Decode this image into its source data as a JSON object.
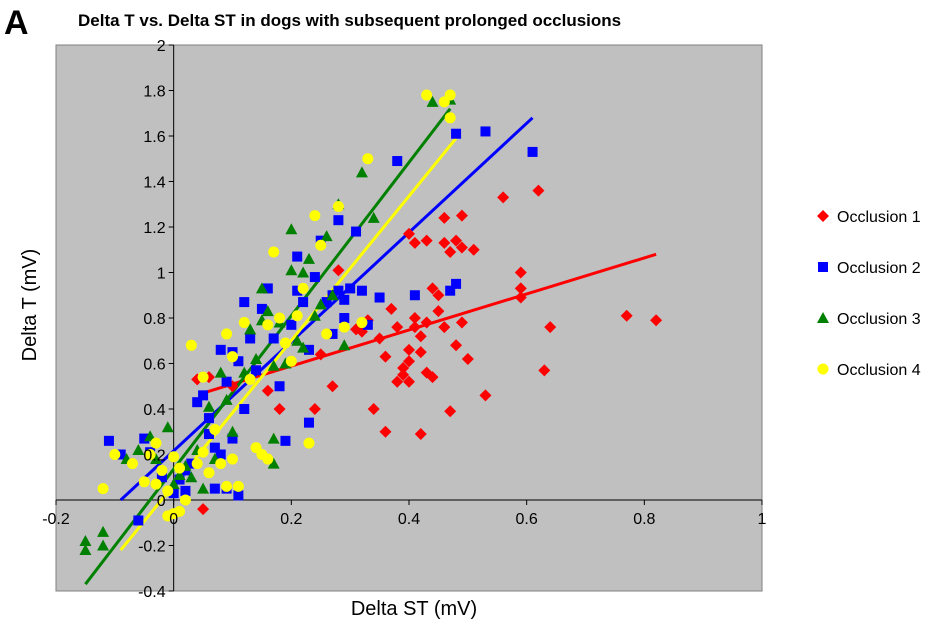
{
  "figure": {
    "panel_label": "A"
  },
  "chart_data": {
    "type": "scatter",
    "title": "Delta T vs. Delta ST in dogs with subsequent prolonged occlusions",
    "xlabel": "Delta ST (mV)",
    "ylabel": "Delta T (mV)",
    "xlim": [
      -0.2,
      1
    ],
    "ylim": [
      -0.4,
      2
    ],
    "x_ticks": [
      "-0.2",
      "0",
      "0.2",
      "0.4",
      "0.6",
      "0.8",
      "1"
    ],
    "y_ticks": [
      "-0.4",
      "-0.2",
      "0",
      "0.2",
      "0.4",
      "0.6",
      "0.8",
      "1",
      "1.2",
      "1.4",
      "1.6",
      "1.8",
      "2"
    ],
    "grid": false,
    "plot_background": "#c0c0c0",
    "legend_position": "right",
    "series": [
      {
        "name": "Occlusion 1",
        "color": "#ff0000",
        "marker": "diamond",
        "trendline": [
          [
            0.05,
            0.47
          ],
          [
            0.82,
            1.08
          ]
        ],
        "points": [
          [
            0.04,
            0.53
          ],
          [
            0.06,
            0.54
          ],
          [
            0.05,
            -0.04
          ],
          [
            0.1,
            0.5
          ],
          [
            0.16,
            0.48
          ],
          [
            0.18,
            0.4
          ],
          [
            0.24,
            0.4
          ],
          [
            0.25,
            0.64
          ],
          [
            0.27,
            0.5
          ],
          [
            0.28,
            1.01
          ],
          [
            0.31,
            0.75
          ],
          [
            0.32,
            0.74
          ],
          [
            0.33,
            0.79
          ],
          [
            0.34,
            0.4
          ],
          [
            0.35,
            0.71
          ],
          [
            0.36,
            0.3
          ],
          [
            0.36,
            0.63
          ],
          [
            0.37,
            0.84
          ],
          [
            0.38,
            0.52
          ],
          [
            0.38,
            0.76
          ],
          [
            0.39,
            0.55
          ],
          [
            0.39,
            0.58
          ],
          [
            0.4,
            0.66
          ],
          [
            0.4,
            0.52
          ],
          [
            0.4,
            0.61
          ],
          [
            0.41,
            0.8
          ],
          [
            0.41,
            0.76
          ],
          [
            0.41,
            1.13
          ],
          [
            0.42,
            0.29
          ],
          [
            0.42,
            0.65
          ],
          [
            0.42,
            0.72
          ],
          [
            0.43,
            1.14
          ],
          [
            0.43,
            0.56
          ],
          [
            0.43,
            0.78
          ],
          [
            0.44,
            0.93
          ],
          [
            0.44,
            0.54
          ],
          [
            0.45,
            0.9
          ],
          [
            0.45,
            0.83
          ],
          [
            0.46,
            0.76
          ],
          [
            0.46,
            1.24
          ],
          [
            0.46,
            1.13
          ],
          [
            0.47,
            0.39
          ],
          [
            0.47,
            1.09
          ],
          [
            0.48,
            0.68
          ],
          [
            0.48,
            1.14
          ],
          [
            0.49,
            0.78
          ],
          [
            0.49,
            1.11
          ],
          [
            0.49,
            1.25
          ],
          [
            0.5,
            0.62
          ],
          [
            0.51,
            1.1
          ],
          [
            0.53,
            0.46
          ],
          [
            0.56,
            1.33
          ],
          [
            0.59,
            1.0
          ],
          [
            0.59,
            0.89
          ],
          [
            0.59,
            0.93
          ],
          [
            0.62,
            1.36
          ],
          [
            0.63,
            0.57
          ],
          [
            0.64,
            0.76
          ],
          [
            0.77,
            0.81
          ],
          [
            0.82,
            0.79
          ],
          [
            0.4,
            1.17
          ]
        ]
      },
      {
        "name": "Occlusion 2",
        "color": "#0000ff",
        "marker": "square",
        "trendline": [
          [
            -0.09,
            0.0
          ],
          [
            0.61,
            1.68
          ]
        ],
        "points": [
          [
            -0.11,
            0.26
          ],
          [
            -0.09,
            0.2
          ],
          [
            -0.06,
            -0.09
          ],
          [
            -0.05,
            0.27
          ],
          [
            -0.04,
            0.21
          ],
          [
            -0.02,
            0.1
          ],
          [
            0.0,
            0.03
          ],
          [
            0.01,
            0.09
          ],
          [
            0.02,
            0.13
          ],
          [
            0.02,
            0.04
          ],
          [
            0.03,
            0.16
          ],
          [
            0.04,
            0.43
          ],
          [
            0.05,
            0.46
          ],
          [
            0.06,
            0.36
          ],
          [
            0.06,
            0.29
          ],
          [
            0.07,
            0.23
          ],
          [
            0.07,
            0.05
          ],
          [
            0.08,
            0.66
          ],
          [
            0.08,
            0.2
          ],
          [
            0.09,
            0.52
          ],
          [
            0.09,
            0.05
          ],
          [
            0.1,
            0.65
          ],
          [
            0.1,
            0.27
          ],
          [
            0.11,
            0.61
          ],
          [
            0.11,
            0.02
          ],
          [
            0.12,
            0.87
          ],
          [
            0.12,
            0.4
          ],
          [
            0.13,
            0.71
          ],
          [
            0.14,
            0.57
          ],
          [
            0.15,
            0.84
          ],
          [
            0.16,
            0.93
          ],
          [
            0.17,
            0.71
          ],
          [
            0.18,
            0.5
          ],
          [
            0.19,
            0.26
          ],
          [
            0.2,
            0.77
          ],
          [
            0.21,
            1.07
          ],
          [
            0.21,
            0.92
          ],
          [
            0.22,
            0.87
          ],
          [
            0.23,
            0.66
          ],
          [
            0.23,
            0.34
          ],
          [
            0.24,
            0.98
          ],
          [
            0.25,
            1.14
          ],
          [
            0.26,
            0.87
          ],
          [
            0.27,
            0.9
          ],
          [
            0.27,
            0.73
          ],
          [
            0.28,
            1.23
          ],
          [
            0.28,
            0.92
          ],
          [
            0.29,
            0.88
          ],
          [
            0.29,
            0.8
          ],
          [
            0.3,
            0.93
          ],
          [
            0.31,
            1.18
          ],
          [
            0.32,
            0.92
          ],
          [
            0.33,
            0.77
          ],
          [
            0.35,
            0.89
          ],
          [
            0.38,
            1.49
          ],
          [
            0.41,
            0.9
          ],
          [
            0.47,
            0.92
          ],
          [
            0.48,
            0.95
          ],
          [
            0.48,
            1.61
          ],
          [
            0.53,
            1.62
          ],
          [
            0.61,
            1.53
          ]
        ]
      },
      {
        "name": "Occlusion 3",
        "color": "#008000",
        "marker": "triangle",
        "trendline": [
          [
            -0.15,
            -0.37
          ],
          [
            0.47,
            1.72
          ]
        ],
        "points": [
          [
            -0.15,
            -0.22
          ],
          [
            -0.15,
            -0.18
          ],
          [
            -0.12,
            -0.2
          ],
          [
            -0.12,
            -0.14
          ],
          [
            -0.08,
            0.18
          ],
          [
            -0.06,
            0.22
          ],
          [
            -0.04,
            0.28
          ],
          [
            -0.03,
            0.18
          ],
          [
            -0.01,
            0.32
          ],
          [
            0.0,
            0.07
          ],
          [
            0.01,
            0.11
          ],
          [
            0.02,
            0.15
          ],
          [
            0.03,
            0.1
          ],
          [
            0.04,
            0.22
          ],
          [
            0.05,
            0.05
          ],
          [
            0.06,
            0.41
          ],
          [
            0.07,
            0.18
          ],
          [
            0.08,
            0.56
          ],
          [
            0.09,
            0.44
          ],
          [
            0.1,
            0.3
          ],
          [
            0.12,
            0.56
          ],
          [
            0.13,
            0.75
          ],
          [
            0.14,
            0.62
          ],
          [
            0.15,
            0.79
          ],
          [
            0.15,
            0.93
          ],
          [
            0.16,
            0.83
          ],
          [
            0.17,
            0.59
          ],
          [
            0.17,
            0.27
          ],
          [
            0.17,
            0.16
          ],
          [
            0.18,
            0.78
          ],
          [
            0.19,
            0.6
          ],
          [
            0.2,
            1.01
          ],
          [
            0.2,
            1.19
          ],
          [
            0.21,
            0.7
          ],
          [
            0.22,
            1.0
          ],
          [
            0.22,
            0.67
          ],
          [
            0.23,
            1.06
          ],
          [
            0.24,
            0.81
          ],
          [
            0.25,
            0.86
          ],
          [
            0.26,
            1.16
          ],
          [
            0.27,
            0.9
          ],
          [
            0.28,
            1.3
          ],
          [
            0.29,
            0.68
          ],
          [
            0.32,
            1.44
          ],
          [
            0.34,
            1.24
          ],
          [
            0.44,
            1.75
          ],
          [
            0.47,
            1.76
          ]
        ]
      },
      {
        "name": "Occlusion 4",
        "color": "#ffff00",
        "marker": "circle",
        "trendline": [
          [
            -0.09,
            -0.22
          ],
          [
            0.48,
            1.59
          ]
        ],
        "points": [
          [
            -0.12,
            0.05
          ],
          [
            -0.1,
            0.2
          ],
          [
            -0.07,
            0.16
          ],
          [
            -0.05,
            0.08
          ],
          [
            -0.04,
            0.2
          ],
          [
            -0.03,
            0.25
          ],
          [
            -0.03,
            0.07
          ],
          [
            -0.02,
            0.13
          ],
          [
            -0.01,
            0.04
          ],
          [
            -0.01,
            -0.07
          ],
          [
            0.0,
            -0.06
          ],
          [
            0.0,
            0.19
          ],
          [
            0.01,
            0.14
          ],
          [
            0.01,
            -0.05
          ],
          [
            0.02,
            0.0
          ],
          [
            0.03,
            0.68
          ],
          [
            0.04,
            0.16
          ],
          [
            0.05,
            0.21
          ],
          [
            0.05,
            0.54
          ],
          [
            0.06,
            0.12
          ],
          [
            0.07,
            0.31
          ],
          [
            0.08,
            0.16
          ],
          [
            0.09,
            0.73
          ],
          [
            0.09,
            0.06
          ],
          [
            0.1,
            0.63
          ],
          [
            0.1,
            0.18
          ],
          [
            0.11,
            0.06
          ],
          [
            0.12,
            0.78
          ],
          [
            0.13,
            0.53
          ],
          [
            0.14,
            0.23
          ],
          [
            0.15,
            0.2
          ],
          [
            0.16,
            0.77
          ],
          [
            0.16,
            0.18
          ],
          [
            0.17,
            1.09
          ],
          [
            0.18,
            0.8
          ],
          [
            0.19,
            0.69
          ],
          [
            0.2,
            0.61
          ],
          [
            0.21,
            0.81
          ],
          [
            0.22,
            0.93
          ],
          [
            0.23,
            0.25
          ],
          [
            0.24,
            1.25
          ],
          [
            0.25,
            1.12
          ],
          [
            0.26,
            0.73
          ],
          [
            0.28,
            1.29
          ],
          [
            0.29,
            0.76
          ],
          [
            0.32,
            0.78
          ],
          [
            0.33,
            1.5
          ],
          [
            0.43,
            1.78
          ],
          [
            0.46,
            1.75
          ],
          [
            0.47,
            1.78
          ],
          [
            0.47,
            1.68
          ]
        ]
      }
    ]
  }
}
